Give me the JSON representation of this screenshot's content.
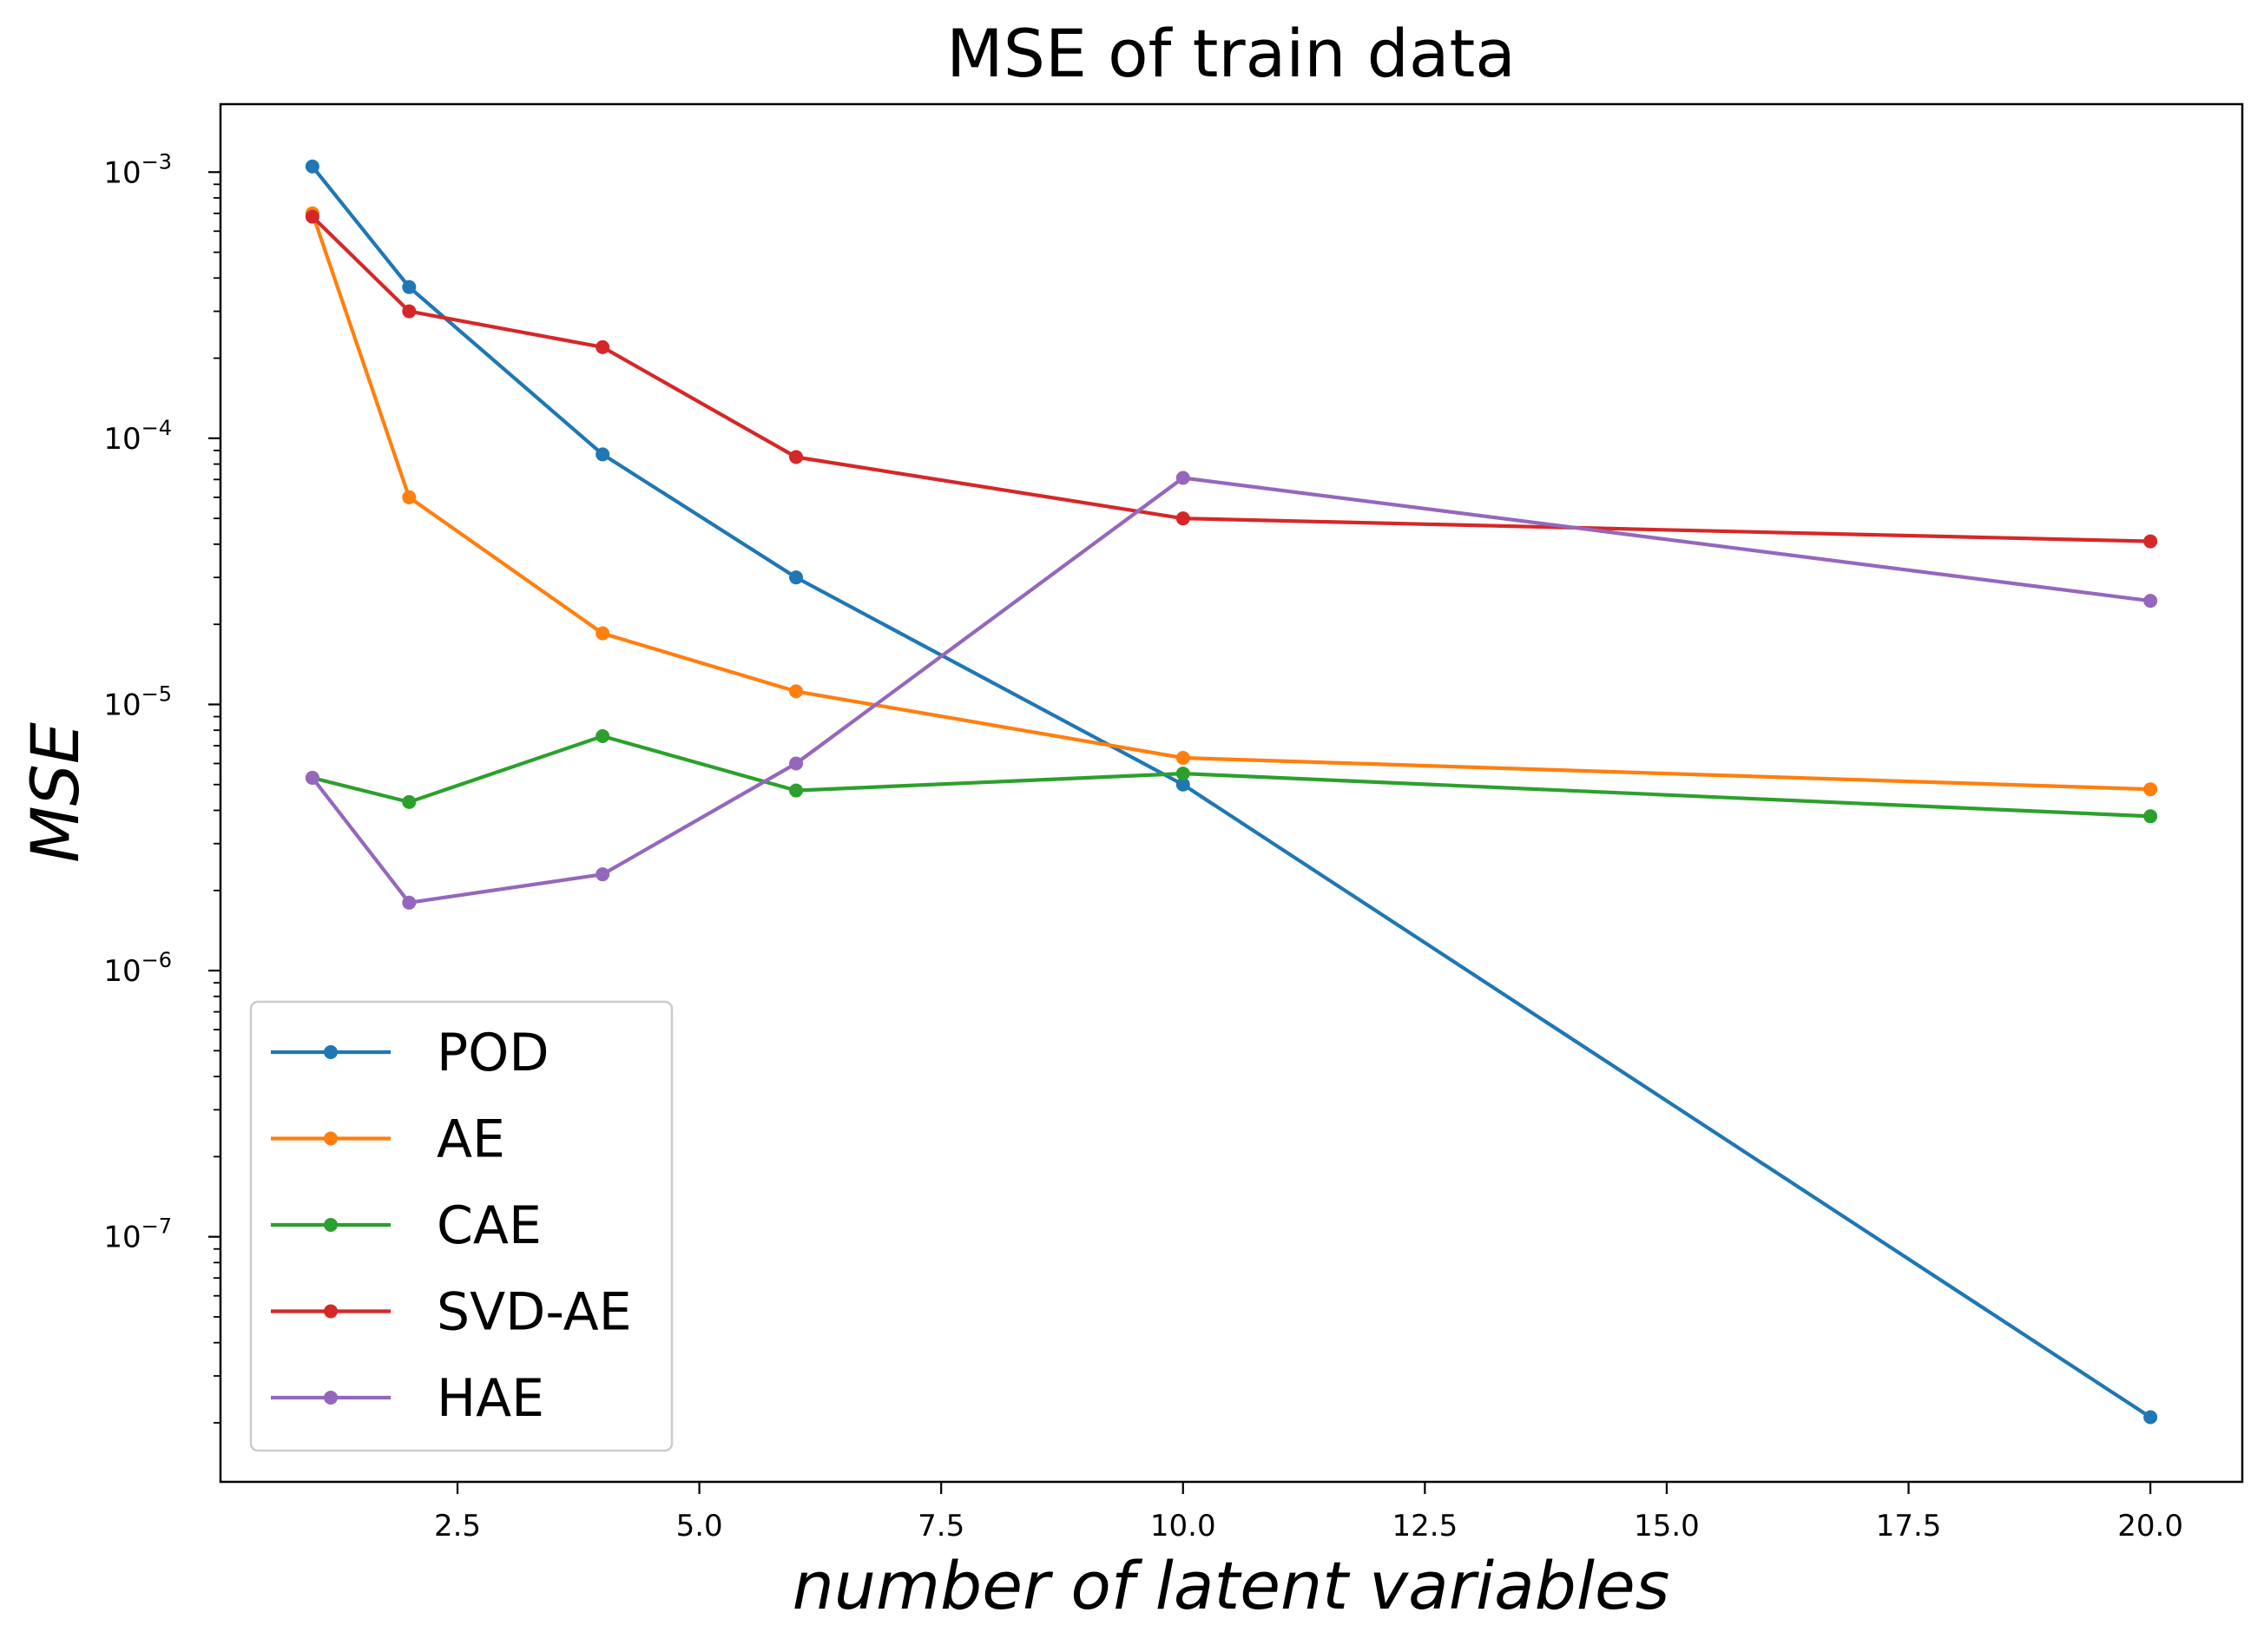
{
  "chart_data": {
    "type": "line",
    "title": "MSE of train data",
    "xlabel": "number of latent variables",
    "ylabel": "MSE",
    "x": [
      1,
      2,
      4,
      6,
      10,
      20
    ],
    "xlim": [
      0.05,
      20.95
    ],
    "ylim": [
      1.2e-08,
      0.0018
    ],
    "yscale": "log",
    "x_ticks": [
      {
        "value": 2.5,
        "label": "2.5"
      },
      {
        "value": 5.0,
        "label": "5.0"
      },
      {
        "value": 7.5,
        "label": "7.5"
      },
      {
        "value": 10.0,
        "label": "10.0"
      },
      {
        "value": 12.5,
        "label": "12.5"
      },
      {
        "value": 15.0,
        "label": "15.0"
      },
      {
        "value": 17.5,
        "label": "17.5"
      },
      {
        "value": 20.0,
        "label": "20.0"
      }
    ],
    "y_ticks": [
      {
        "value": 1e-07,
        "base": "10",
        "exp": "−7"
      },
      {
        "value": 1e-06,
        "base": "10",
        "exp": "−6"
      },
      {
        "value": 1e-05,
        "base": "10",
        "exp": "−5"
      },
      {
        "value": 0.0001,
        "base": "10",
        "exp": "−4"
      },
      {
        "value": 0.001,
        "base": "10",
        "exp": "−3"
      }
    ],
    "grid": false,
    "legend_position": "bottom-left",
    "series": [
      {
        "name": "POD",
        "color": "#1f77b4",
        "values": [
          0.00105,
          0.00037,
          8.7e-05,
          3e-05,
          5e-06,
          2.1e-08
        ]
      },
      {
        "name": "AE",
        "color": "#ff7f0e",
        "values": [
          0.0007,
          6e-05,
          1.85e-05,
          1.12e-05,
          6.3e-06,
          4.8e-06
        ]
      },
      {
        "name": "CAE",
        "color": "#2ca02c",
        "values": [
          5.3e-06,
          4.3e-06,
          7.6e-06,
          4.75e-06,
          5.5e-06,
          3.8e-06
        ]
      },
      {
        "name": "SVD-AE",
        "color": "#d62728",
        "values": [
          0.00068,
          0.0003,
          0.00022,
          8.5e-05,
          5e-05,
          4.1e-05
        ]
      },
      {
        "name": "HAE",
        "color": "#9467bd",
        "values": [
          5.3e-06,
          1.8e-06,
          2.3e-06,
          6e-06,
          7.1e-05,
          2.45e-05
        ]
      }
    ]
  }
}
